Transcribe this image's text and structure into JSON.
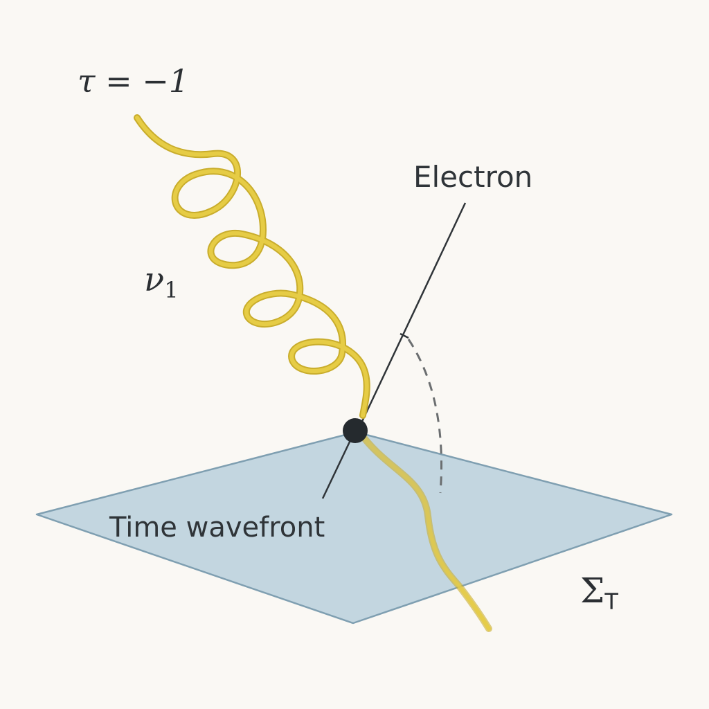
{
  "diagram": {
    "tau_label": "τ = −1",
    "worldline_label": "ν",
    "worldline_subscript": "1",
    "electron_label": "Electron",
    "wavefront_label": "Time wavefront",
    "sigma_label": "Σ",
    "sigma_subscript": "T"
  },
  "colors": {
    "background": "#faf8f4",
    "plane_fill": "#b9d0dc",
    "plane_edge": "#7f9fb1",
    "helix": "#e6cc45",
    "helix_edge": "#c9ad2c",
    "ink": "#2f3438",
    "dashed_arc": "#6b6e70",
    "event_dot": "#252a2e"
  },
  "icons": {
    "event": "event-dot-icon"
  }
}
